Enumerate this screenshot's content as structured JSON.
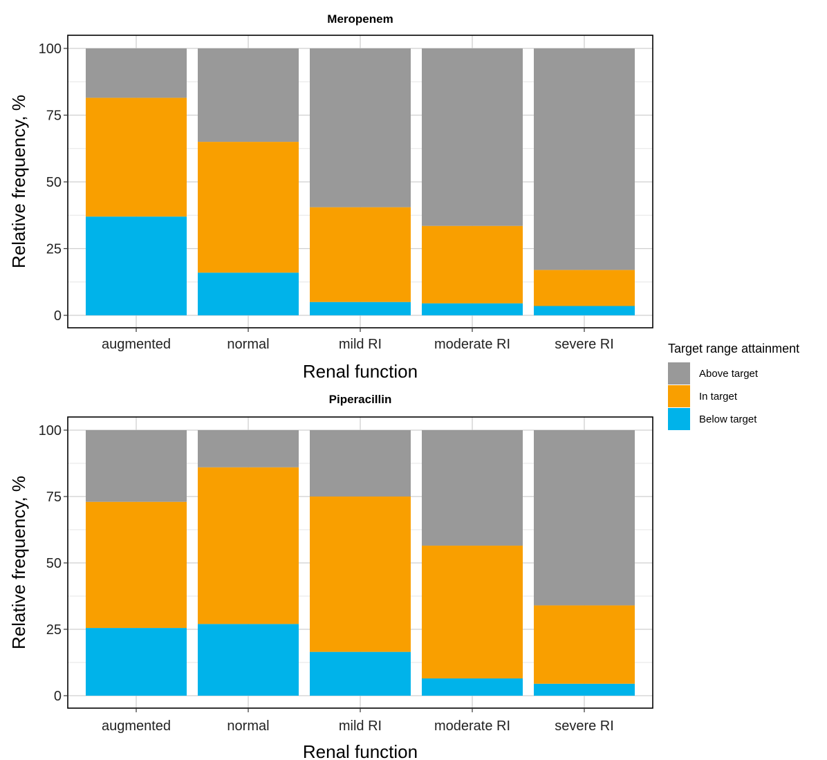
{
  "chart_data": [
    {
      "type": "bar",
      "stacked": true,
      "title": "Meropenem",
      "xlabel": "Renal function",
      "ylabel": "Relative frequency, %",
      "ylim": [
        0,
        100
      ],
      "yticks": [
        0,
        25,
        50,
        75,
        100
      ],
      "categories": [
        "augmented",
        "normal",
        "mild RI",
        "moderate RI",
        "severe RI"
      ],
      "series": [
        {
          "name": "Below target",
          "values": [
            37,
            16,
            5,
            4.5,
            3.5
          ]
        },
        {
          "name": "In target",
          "values": [
            44.5,
            49,
            35.5,
            29,
            13.5
          ]
        },
        {
          "name": "Above target",
          "values": [
            18.5,
            35,
            59.5,
            66.5,
            83
          ]
        }
      ],
      "grid": true
    },
    {
      "type": "bar",
      "stacked": true,
      "title": "Piperacillin",
      "xlabel": "Renal function",
      "ylabel": "Relative frequency, %",
      "ylim": [
        0,
        100
      ],
      "yticks": [
        0,
        25,
        50,
        75,
        100
      ],
      "categories": [
        "augmented",
        "normal",
        "mild RI",
        "moderate RI",
        "severe RI"
      ],
      "series": [
        {
          "name": "Below target",
          "values": [
            25.5,
            27,
            16.5,
            6.5,
            4.5
          ]
        },
        {
          "name": "In target",
          "values": [
            47.5,
            59,
            58.5,
            50,
            29.5
          ]
        },
        {
          "name": "Above target",
          "values": [
            27,
            14,
            25,
            43.5,
            66
          ]
        }
      ],
      "grid": true
    }
  ],
  "legend": {
    "title": "Target range attainment",
    "placement": "right",
    "items": [
      {
        "label": "Above target",
        "color": "#999999"
      },
      {
        "label": "In target",
        "color": "#f99f00"
      },
      {
        "label": "Below target",
        "color": "#00b3ea"
      }
    ]
  },
  "colors": {
    "Below target": "#00b3ea",
    "In target": "#f99f00",
    "Above target": "#999999"
  }
}
